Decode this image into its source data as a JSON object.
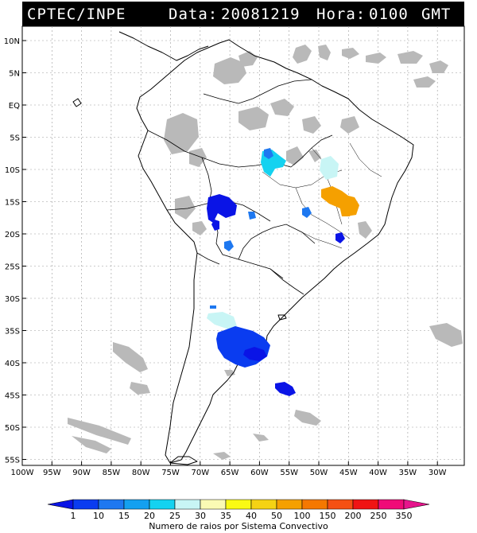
{
  "header": {
    "agency": "CPTEC/INPE",
    "data_label": "Data:",
    "date": "20081219",
    "hora_label": "Hora:",
    "time": "0100",
    "timezone": "GMT"
  },
  "lat_labels": [
    "10N",
    "5N",
    "EQ",
    "5S",
    "10S",
    "15S",
    "20S",
    "25S",
    "30S",
    "35S",
    "40S",
    "45S",
    "50S",
    "55S"
  ],
  "lon_labels": [
    "100W",
    "95W",
    "90W",
    "85W",
    "80W",
    "75W",
    "70W",
    "65W",
    "60W",
    "55W",
    "50W",
    "45W",
    "40W",
    "35W",
    "30W"
  ],
  "colorbar": {
    "values": [
      "1",
      "10",
      "15",
      "20",
      "25",
      "30",
      "35",
      "40",
      "50",
      "100",
      "150",
      "200",
      "250",
      "350"
    ],
    "colors": [
      "#0a14e6",
      "#0a3cf0",
      "#1e78f0",
      "#14a0f0",
      "#14d2f0",
      "#c8f5f5",
      "#fafab4",
      "#fafa14",
      "#f5d214",
      "#f5a000",
      "#f57800",
      "#f55014",
      "#f01414",
      "#f00a78",
      "#e6148c"
    ],
    "title": "Numero de raios por Sistema Convectivo"
  }
}
